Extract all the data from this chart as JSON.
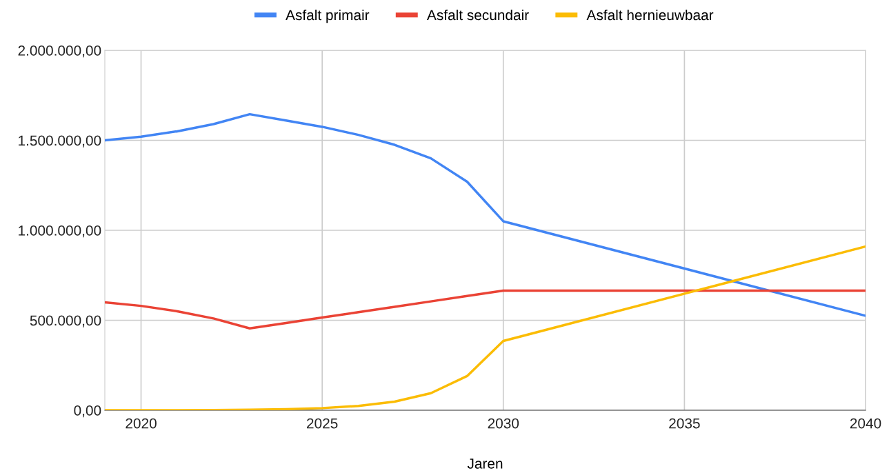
{
  "chart_data": {
    "type": "line",
    "xlabel": "Jaren",
    "x": [
      2019,
      2020,
      2021,
      2022,
      2023,
      2024,
      2025,
      2026,
      2027,
      2028,
      2029,
      2030,
      2040
    ],
    "series": [
      {
        "name": "Asfalt primair",
        "color": "#4285f4",
        "values": [
          1500000,
          1520000,
          1550000,
          1590000,
          1645000,
          1610000,
          1575000,
          1530000,
          1475000,
          1400000,
          1270000,
          1050000,
          525000
        ]
      },
      {
        "name": "Asfalt secundair",
        "color": "#ea4335",
        "values": [
          600000,
          580000,
          550000,
          510000,
          455000,
          485000,
          515000,
          545000,
          575000,
          605000,
          635000,
          665000,
          665000
        ]
      },
      {
        "name": "Asfalt hernieuwbaar",
        "color": "#fbbc04",
        "values": [
          0,
          0,
          0,
          1000,
          3000,
          6000,
          12000,
          24000,
          48000,
          95000,
          190000,
          385000,
          910000
        ]
      }
    ],
    "xlim": [
      2019,
      2040
    ],
    "xticks": [
      2020,
      2025,
      2030,
      2035,
      2040
    ],
    "ylim": [
      0,
      2000000
    ],
    "yticks": [
      {
        "value": 0,
        "label": "0,00"
      },
      {
        "value": 500000,
        "label": "500.000,00"
      },
      {
        "value": 1000000,
        "label": "1.000.000,00"
      },
      {
        "value": 1500000,
        "label": "1.500.000,00"
      },
      {
        "value": 2000000,
        "label": "2.000.000,00"
      }
    ],
    "grid": true,
    "legend": "top",
    "marker": "none",
    "line_style": "solid"
  }
}
